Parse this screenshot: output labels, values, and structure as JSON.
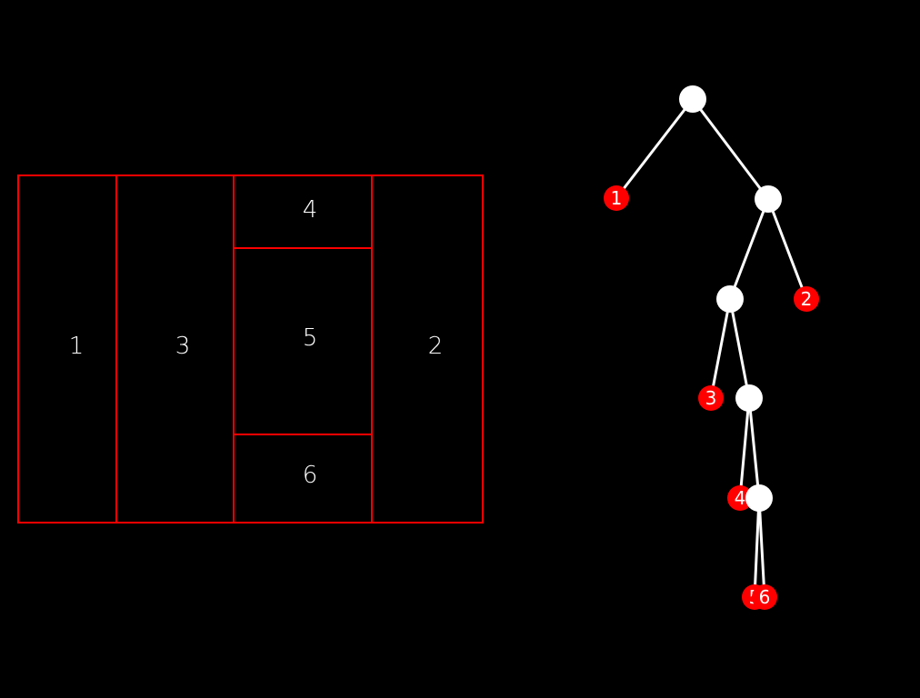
{
  "colors": {
    "background": "#000000",
    "partition_stroke": "#ff0000",
    "partition_text": "#ffffff",
    "edge": "#ffffff",
    "internal_node": "#ffffff",
    "leaf_node": "#ff0000",
    "leaf_text": "#ffffff"
  },
  "partition": {
    "regions": [
      {
        "label": "1"
      },
      {
        "label": "3"
      },
      {
        "label": "4"
      },
      {
        "label": "5"
      },
      {
        "label": "6"
      },
      {
        "label": "2"
      }
    ]
  },
  "tree": {
    "leaves": [
      {
        "label": "1"
      },
      {
        "label": "2"
      },
      {
        "label": "3"
      },
      {
        "label": "4"
      },
      {
        "label": "5"
      },
      {
        "label": "6"
      }
    ]
  }
}
